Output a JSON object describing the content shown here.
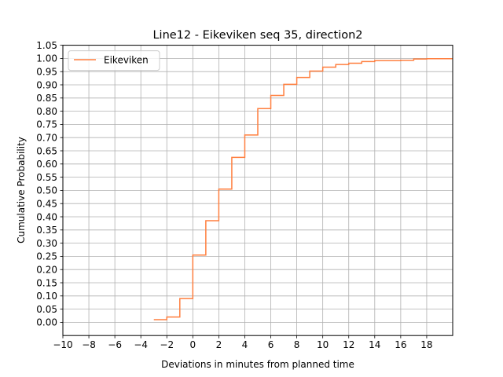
{
  "chart_data": {
    "type": "line",
    "step": true,
    "title": "Line12 - Eikeviken seq 35, direction2",
    "xlabel": "Deviations in minutes from planned time",
    "ylabel": "Cumulative Probability",
    "xlim": [
      -10,
      20
    ],
    "ylim": [
      -0.05,
      1.05
    ],
    "xticks": [
      -10,
      -8,
      -6,
      -4,
      -2,
      0,
      2,
      4,
      6,
      8,
      10,
      12,
      14,
      16,
      18
    ],
    "xtick_labels": [
      "−10",
      "−8",
      "−6",
      "−4",
      "−2",
      "0",
      "2",
      "4",
      "6",
      "8",
      "10",
      "12",
      "14",
      "16",
      "18"
    ],
    "yticks": [
      0,
      0.05,
      0.1,
      0.15,
      0.2,
      0.25,
      0.3,
      0.35,
      0.4,
      0.45,
      0.5,
      0.55,
      0.6,
      0.65,
      0.7,
      0.75,
      0.8,
      0.85,
      0.9,
      0.95,
      1.0,
      1.05
    ],
    "ytick_labels": [
      "0.00",
      "0.05",
      "0.10",
      "0.15",
      "0.20",
      "0.25",
      "0.30",
      "0.35",
      "0.40",
      "0.45",
      "0.50",
      "0.55",
      "0.60",
      "0.65",
      "0.70",
      "0.75",
      "0.80",
      "0.85",
      "0.90",
      "0.95",
      "1.00",
      "1.05"
    ],
    "grid": true,
    "legend": "upper-left",
    "series": [
      {
        "name": "Eikeviken",
        "color": "#ff7f3f",
        "x": [
          -3,
          -2,
          -1,
          0,
          1,
          2,
          3,
          4,
          5,
          6,
          7,
          8,
          9,
          10,
          11,
          12,
          13,
          14,
          15,
          16,
          17,
          18,
          20
        ],
        "y": [
          0.01,
          0.02,
          0.09,
          0.255,
          0.385,
          0.505,
          0.625,
          0.71,
          0.81,
          0.86,
          0.902,
          0.928,
          0.952,
          0.967,
          0.977,
          0.982,
          0.988,
          0.992,
          0.992,
          0.993,
          0.998,
          0.999,
          0.999
        ]
      }
    ]
  }
}
